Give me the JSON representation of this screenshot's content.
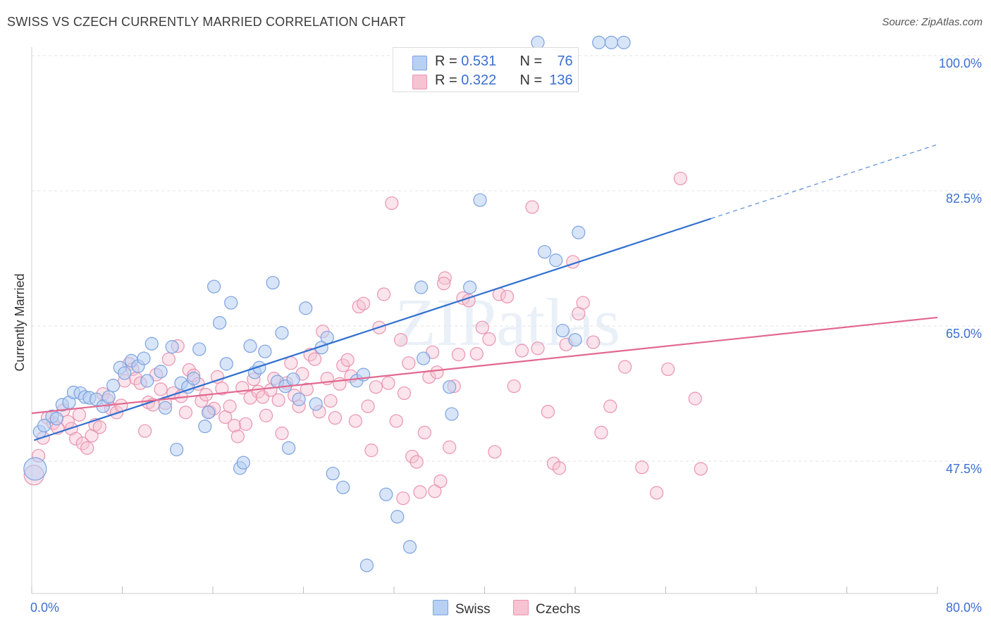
{
  "title": "SWISS VS CZECH CURRENTLY MARRIED CORRELATION CHART",
  "source": "Source: ZipAtlas.com",
  "watermark": "ZIPatlas",
  "colors": {
    "swiss_fill": "#b8d0f2",
    "swiss_stroke": "#7ba2e0",
    "swiss_line": "#2f6fd0",
    "czech_fill": "#f6c3d3",
    "czech_stroke": "#ea93b0",
    "czech_line": "#e2688f",
    "tick_label": "#3a6fd1",
    "grid": "#e3e3e3"
  },
  "legend": {
    "swiss_r_label": "R = ",
    "swiss_r_value": "0.531",
    "swiss_n_label": "N = ",
    "swiss_n_value": "76",
    "czech_r_label": "R = ",
    "czech_r_value": "0.322",
    "czech_n_label": "N = ",
    "czech_n_value": "136"
  },
  "chart_data": {
    "type": "scatter",
    "title": "SWISS VS CZECH CURRENTLY MARRIED CORRELATION CHART",
    "xlabel": "",
    "ylabel": "Currently Married",
    "xlim": [
      0,
      80
    ],
    "ylim": [
      33,
      102
    ],
    "x_tick_labels": [
      "0.0%",
      "80.0%"
    ],
    "y_ticks": [
      47.5,
      65.0,
      82.5,
      100.0
    ],
    "y_tick_labels": [
      "47.5%",
      "65.0%",
      "82.5%",
      "100.0%"
    ],
    "grid": "horizontal dashed",
    "legend_position": "top-center",
    "series": [
      {
        "name": "Swiss",
        "trend": {
          "x0": 0.2,
          "y0": 50.2,
          "x1": 60.0,
          "y1": 78.9,
          "dash_to_x": 80.0,
          "dash_to_y": 88.5
        },
        "points": [
          [
            0.3,
            46.5
          ],
          [
            0.7,
            51.3
          ],
          [
            1.1,
            52.1
          ],
          [
            1.8,
            53.3
          ],
          [
            2.2,
            53.0
          ],
          [
            2.7,
            54.8
          ],
          [
            3.3,
            55.1
          ],
          [
            3.7,
            56.4
          ],
          [
            4.3,
            56.3
          ],
          [
            4.7,
            55.8
          ],
          [
            5.1,
            55.7
          ],
          [
            5.7,
            55.5
          ],
          [
            6.3,
            54.6
          ],
          [
            6.8,
            55.8
          ],
          [
            7.2,
            57.3
          ],
          [
            7.8,
            59.6
          ],
          [
            8.2,
            58.9
          ],
          [
            8.8,
            60.5
          ],
          [
            9.4,
            59.8
          ],
          [
            9.9,
            60.8
          ],
          [
            10.2,
            57.9
          ],
          [
            10.6,
            62.7
          ],
          [
            11.4,
            59.1
          ],
          [
            11.8,
            54.4
          ],
          [
            12.4,
            62.3
          ],
          [
            12.8,
            49.0
          ],
          [
            13.2,
            57.6
          ],
          [
            13.8,
            57.1
          ],
          [
            14.3,
            58.2
          ],
          [
            14.8,
            62.0
          ],
          [
            15.3,
            52.0
          ],
          [
            15.6,
            53.8
          ],
          [
            16.1,
            70.1
          ],
          [
            16.6,
            65.4
          ],
          [
            17.2,
            60.1
          ],
          [
            17.6,
            68.0
          ],
          [
            18.4,
            46.6
          ],
          [
            18.7,
            47.3
          ],
          [
            19.3,
            62.4
          ],
          [
            19.7,
            59.0
          ],
          [
            20.1,
            59.6
          ],
          [
            20.6,
            61.7
          ],
          [
            21.3,
            70.6
          ],
          [
            21.7,
            57.8
          ],
          [
            22.1,
            64.1
          ],
          [
            22.4,
            57.2
          ],
          [
            22.7,
            49.2
          ],
          [
            23.1,
            58.1
          ],
          [
            23.6,
            55.5
          ],
          [
            24.2,
            67.3
          ],
          [
            25.1,
            54.9
          ],
          [
            25.6,
            62.2
          ],
          [
            26.1,
            63.5
          ],
          [
            26.6,
            45.9
          ],
          [
            27.5,
            44.1
          ],
          [
            28.7,
            57.9
          ],
          [
            29.3,
            58.7
          ],
          [
            29.6,
            34.0
          ],
          [
            31.3,
            43.2
          ],
          [
            32.3,
            40.3
          ],
          [
            33.4,
            36.4
          ],
          [
            34.4,
            70.0
          ],
          [
            34.6,
            60.8
          ],
          [
            36.9,
            57.1
          ],
          [
            37.1,
            53.6
          ],
          [
            38.7,
            70.0
          ],
          [
            39.6,
            81.3
          ],
          [
            44.7,
            101.7
          ],
          [
            45.3,
            74.6
          ],
          [
            46.3,
            73.5
          ],
          [
            46.9,
            64.4
          ],
          [
            48.3,
            77.1
          ],
          [
            50.1,
            101.7
          ],
          [
            51.2,
            101.7
          ],
          [
            52.3,
            101.7
          ],
          [
            48.0,
            63.2
          ]
        ]
      },
      {
        "name": "Czechs",
        "trend": {
          "x0": 0.0,
          "y0": 53.7,
          "x1": 80.0,
          "y1": 66.1
        },
        "points": [
          [
            0.2,
            45.7
          ],
          [
            0.6,
            48.2
          ],
          [
            1.0,
            50.5
          ],
          [
            1.4,
            53.1
          ],
          [
            1.9,
            52.4
          ],
          [
            2.3,
            51.8
          ],
          [
            2.8,
            54.1
          ],
          [
            3.2,
            52.6
          ],
          [
            3.5,
            51.7
          ],
          [
            3.9,
            50.4
          ],
          [
            4.2,
            53.5
          ],
          [
            4.5,
            49.8
          ],
          [
            4.9,
            49.2
          ],
          [
            5.3,
            50.8
          ],
          [
            5.6,
            52.2
          ],
          [
            6.0,
            51.9
          ],
          [
            6.3,
            56.2
          ],
          [
            6.7,
            55.4
          ],
          [
            7.0,
            54.3
          ],
          [
            7.5,
            53.8
          ],
          [
            7.9,
            54.7
          ],
          [
            8.2,
            57.9
          ],
          [
            8.6,
            60.1
          ],
          [
            8.9,
            59.4
          ],
          [
            9.2,
            58.2
          ],
          [
            9.6,
            57.6
          ],
          [
            10.0,
            51.4
          ],
          [
            10.3,
            55.1
          ],
          [
            10.7,
            54.8
          ],
          [
            11.0,
            58.7
          ],
          [
            11.4,
            56.8
          ],
          [
            11.8,
            55.0
          ],
          [
            12.1,
            60.7
          ],
          [
            12.5,
            56.3
          ],
          [
            12.9,
            62.4
          ],
          [
            13.2,
            55.9
          ],
          [
            13.6,
            53.8
          ],
          [
            13.9,
            59.3
          ],
          [
            14.3,
            58.6
          ],
          [
            14.7,
            57.5
          ],
          [
            15.0,
            55.3
          ],
          [
            15.4,
            56.1
          ],
          [
            15.7,
            53.9
          ],
          [
            16.1,
            54.3
          ],
          [
            16.4,
            58.4
          ],
          [
            16.8,
            56.9
          ],
          [
            17.1,
            53.2
          ],
          [
            17.5,
            54.6
          ],
          [
            17.9,
            52.1
          ],
          [
            18.2,
            50.7
          ],
          [
            18.6,
            57.0
          ],
          [
            18.9,
            52.3
          ],
          [
            19.3,
            55.7
          ],
          [
            19.6,
            58.1
          ],
          [
            20.0,
            56.5
          ],
          [
            20.4,
            55.8
          ],
          [
            20.7,
            53.4
          ],
          [
            21.1,
            56.7
          ],
          [
            21.4,
            58.2
          ],
          [
            21.8,
            55.4
          ],
          [
            22.1,
            51.1
          ],
          [
            22.5,
            57.6
          ],
          [
            22.9,
            60.2
          ],
          [
            23.2,
            56.0
          ],
          [
            23.6,
            54.6
          ],
          [
            23.9,
            58.8
          ],
          [
            24.3,
            56.8
          ],
          [
            24.6,
            61.3
          ],
          [
            25.0,
            60.7
          ],
          [
            25.4,
            53.9
          ],
          [
            25.7,
            64.3
          ],
          [
            26.1,
            58.2
          ],
          [
            26.4,
            55.3
          ],
          [
            26.8,
            53.1
          ],
          [
            27.2,
            57.5
          ],
          [
            27.5,
            59.9
          ],
          [
            27.9,
            60.6
          ],
          [
            28.2,
            58.5
          ],
          [
            28.6,
            52.7
          ],
          [
            28.9,
            67.5
          ],
          [
            29.3,
            67.9
          ],
          [
            29.7,
            54.6
          ],
          [
            30.0,
            48.9
          ],
          [
            30.4,
            57.1
          ],
          [
            30.7,
            64.8
          ],
          [
            31.1,
            69.1
          ],
          [
            31.5,
            57.6
          ],
          [
            31.8,
            80.9
          ],
          [
            32.2,
            52.7
          ],
          [
            32.6,
            63.2
          ],
          [
            32.9,
            56.3
          ],
          [
            33.3,
            60.2
          ],
          [
            33.6,
            48.1
          ],
          [
            34.0,
            47.4
          ],
          [
            34.3,
            43.5
          ],
          [
            34.7,
            51.2
          ],
          [
            35.1,
            58.4
          ],
          [
            35.4,
            61.6
          ],
          [
            35.8,
            59.0
          ],
          [
            36.1,
            44.9
          ],
          [
            36.5,
            71.2
          ],
          [
            36.9,
            49.3
          ],
          [
            37.3,
            57.2
          ],
          [
            37.7,
            61.3
          ],
          [
            38.1,
            68.6
          ],
          [
            38.6,
            68.3
          ],
          [
            39.3,
            61.4
          ],
          [
            39.8,
            64.8
          ],
          [
            40.4,
            63.3
          ],
          [
            40.9,
            48.7
          ],
          [
            41.3,
            69.1
          ],
          [
            42.0,
            68.8
          ],
          [
            42.6,
            57.2
          ],
          [
            43.3,
            61.8
          ],
          [
            44.2,
            80.4
          ],
          [
            44.7,
            62.1
          ],
          [
            45.6,
            53.9
          ],
          [
            46.1,
            47.2
          ],
          [
            46.6,
            46.6
          ],
          [
            47.2,
            62.6
          ],
          [
            47.8,
            73.3
          ],
          [
            48.3,
            66.6
          ],
          [
            48.7,
            68.0
          ],
          [
            49.6,
            62.9
          ],
          [
            50.3,
            51.2
          ],
          [
            51.1,
            54.6
          ],
          [
            52.4,
            59.7
          ],
          [
            53.9,
            46.7
          ],
          [
            55.2,
            43.4
          ],
          [
            56.2,
            59.4
          ],
          [
            57.3,
            84.1
          ],
          [
            58.6,
            55.6
          ],
          [
            59.1,
            46.5
          ],
          [
            35.6,
            43.6
          ],
          [
            32.8,
            42.7
          ],
          [
            36.4,
            70.5
          ]
        ]
      }
    ]
  },
  "axis_labels": {
    "x_left": "0.0%",
    "x_right": "80.0%",
    "y_47_5": "47.5%",
    "y_65_0": "65.0%",
    "y_82_5": "82.5%",
    "y_100_0": "100.0%",
    "y_title": "Currently Married"
  },
  "bottom_legend": {
    "swiss": "Swiss",
    "czechs": "Czechs"
  }
}
